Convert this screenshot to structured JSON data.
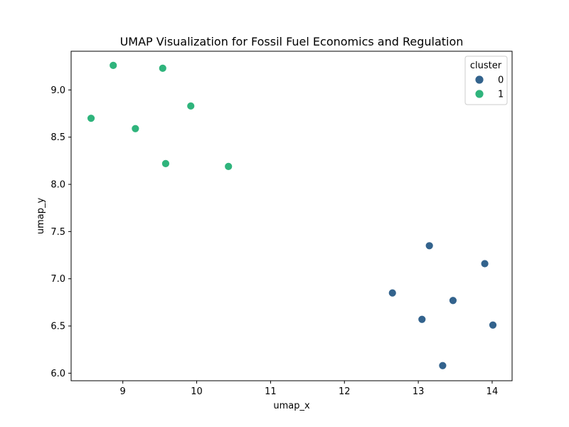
{
  "chart_data": {
    "type": "scatter",
    "title": "UMAP Visualization for Fossil Fuel Economics and Regulation",
    "xlabel": "umap_x",
    "ylabel": "umap_y",
    "xlim": [
      8.3,
      14.27
    ],
    "ylim": [
      5.92,
      9.41
    ],
    "xticks": [
      9,
      10,
      11,
      12,
      13,
      14
    ],
    "yticks": [
      6.0,
      6.5,
      7.0,
      7.5,
      8.0,
      8.5,
      9.0
    ],
    "ytick_labels": [
      "6.0",
      "6.5",
      "7.0",
      "7.5",
      "8.0",
      "8.5",
      "9.0"
    ],
    "grid": false,
    "legend": {
      "title": "cluster",
      "placement": "top-right"
    },
    "series": [
      {
        "name": "0",
        "color": "#33638d",
        "points": [
          {
            "x": 13.15,
            "y": 7.35
          },
          {
            "x": 13.9,
            "y": 7.16
          },
          {
            "x": 12.65,
            "y": 6.85
          },
          {
            "x": 13.47,
            "y": 6.77
          },
          {
            "x": 13.05,
            "y": 6.57
          },
          {
            "x": 14.01,
            "y": 6.51
          },
          {
            "x": 13.33,
            "y": 6.08
          }
        ]
      },
      {
        "name": "1",
        "color": "#2fb47c",
        "points": [
          {
            "x": 8.87,
            "y": 9.26
          },
          {
            "x": 9.54,
            "y": 9.23
          },
          {
            "x": 9.92,
            "y": 8.83
          },
          {
            "x": 8.57,
            "y": 8.7
          },
          {
            "x": 9.17,
            "y": 8.59
          },
          {
            "x": 9.58,
            "y": 8.22
          },
          {
            "x": 10.43,
            "y": 8.19
          }
        ]
      }
    ]
  }
}
